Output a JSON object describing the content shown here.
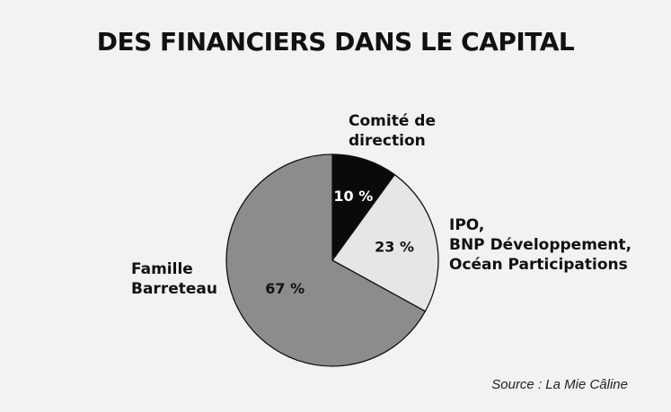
{
  "chart_data": {
    "type": "pie",
    "title": "DES FINANCIERS DANS LE CAPITAL",
    "slices": [
      {
        "label_lines": [
          "Comité de",
          "direction"
        ],
        "value": 10,
        "value_label": "10 %",
        "color": "#0a0a0a",
        "text_color": "#ffffff"
      },
      {
        "label_lines": [
          "IPO,",
          "BNP Développement,",
          "Océan Participations"
        ],
        "value": 23,
        "value_label": "23 %",
        "color": "#e6e6e6",
        "text_color": "#111111"
      },
      {
        "label_lines": [
          "Famille",
          "Barreteau"
        ],
        "value": 67,
        "value_label": "67 %",
        "color": "#8c8c8c",
        "text_color": "#111111"
      }
    ],
    "source": "Source : La Mie Câline"
  }
}
